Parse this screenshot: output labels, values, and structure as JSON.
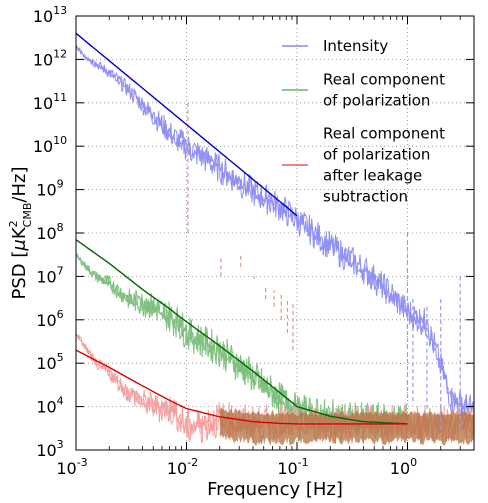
{
  "chart_data": {
    "type": "line",
    "xscale": "log",
    "yscale": "log",
    "xlabel": "Frequency [Hz]",
    "ylabel": "PSD [μK²_CMB/Hz]",
    "ylabel_parts": {
      "prefix": "PSD [",
      "mu": "μ",
      "k": "K",
      "sup": "2",
      "sub": "CMB",
      "suffix": "/Hz]"
    },
    "xlim": [
      0.001,
      4.0
    ],
    "ylim": [
      1000,
      10000000000000
    ],
    "grid": true,
    "legend_position": "upper right",
    "x_ticks": [
      {
        "base": "10",
        "exp": "-3",
        "value": 0.001
      },
      {
        "base": "10",
        "exp": "-2",
        "value": 0.01
      },
      {
        "base": "10",
        "exp": "-1",
        "value": 0.1
      },
      {
        "base": "10",
        "exp": "0",
        "value": 1
      }
    ],
    "y_ticks": [
      {
        "base": "10",
        "exp": "3",
        "value": 1000.0
      },
      {
        "base": "10",
        "exp": "4",
        "value": 10000.0
      },
      {
        "base": "10",
        "exp": "5",
        "value": 100000.0
      },
      {
        "base": "10",
        "exp": "6",
        "value": 1000000.0
      },
      {
        "base": "10",
        "exp": "7",
        "value": 10000000.0
      },
      {
        "base": "10",
        "exp": "8",
        "value": 100000000.0
      },
      {
        "base": "10",
        "exp": "9",
        "value": 1000000000.0
      },
      {
        "base": "10",
        "exp": "10",
        "value": 10000000000.0
      },
      {
        "base": "10",
        "exp": "11",
        "value": 100000000000.0
      },
      {
        "base": "10",
        "exp": "12",
        "value": 1000000000000.0
      },
      {
        "base": "10",
        "exp": "13",
        "value": 10000000000000.0
      }
    ],
    "series": [
      {
        "name": "Intensity",
        "legend_lines": [
          "Intensity"
        ],
        "color": "#0000cc",
        "noise_color": "#8f8ff5",
        "fit": {
          "x": [
            0.001,
            0.1
          ],
          "y": [
            4000000000000.0,
            250000000.0
          ]
        },
        "noise_x": [
          0.001,
          0.0012,
          0.0015,
          0.002,
          0.003,
          0.005,
          0.008,
          0.01,
          0.02,
          0.04,
          0.07,
          0.1,
          0.2,
          0.4,
          0.7,
          1.0,
          1.5,
          2.5,
          4.0
        ],
        "noise_y": [
          2000000000000.0,
          1200000000000.0,
          800000000000.0,
          500000000000.0,
          200000000000.0,
          50000000000.0,
          15000000000.0,
          10000000000.0,
          3000000000.0,
          900000000.0,
          400000000.0,
          200000000.0,
          50000000.0,
          15000000.0,
          4000000.0,
          1500000.0,
          800000.0,
          15000.0,
          8000.0
        ]
      },
      {
        "name": "Real component of polarization",
        "legend_lines": [
          "Real component",
          "of polarization"
        ],
        "color": "#006600",
        "noise_color": "#7fbf7f",
        "fit": {
          "x": [
            0.001,
            0.002,
            0.004,
            0.007,
            0.01,
            0.02,
            0.04,
            0.07,
            0.1,
            0.2,
            0.4,
            1.0
          ],
          "y": [
            70000000.0,
            20000000.0,
            5000000.0,
            1800000.0,
            900000.0,
            250000.0,
            65000.0,
            21000.0,
            10000.0,
            6000.0,
            4500.0,
            4000.0
          ]
        },
        "noise_x": [
          0.001,
          0.0015,
          0.002,
          0.003,
          0.005,
          0.008,
          0.01,
          0.02,
          0.04,
          0.07,
          0.1,
          0.2,
          0.4,
          1.0
        ],
        "noise_y": [
          30000000.0,
          10000000.0,
          7000000.0,
          3000000.0,
          2000000.0,
          1000000.0,
          500000.0,
          200000.0,
          50000.0,
          15000.0,
          8000.0,
          6000.0,
          5000.0,
          5000.0
        ]
      },
      {
        "name": "Real component of polarization after leakage subtraction",
        "legend_lines": [
          "Real component",
          "of polarization",
          "after leakage",
          "subtraction"
        ],
        "color": "#dd0000",
        "noise_color": "#f5a0a0",
        "fill_color": "#b07040",
        "fit": {
          "x": [
            0.001,
            0.002,
            0.004,
            0.007,
            0.01,
            0.02,
            0.04,
            0.07,
            0.1,
            0.2,
            0.5,
            1.0
          ],
          "y": [
            200000.0,
            80000.0,
            30000.0,
            14000.0,
            9000.0,
            5800.0,
            4500.0,
            4100.0,
            4000.0,
            4000.0,
            4000.0,
            4000.0
          ]
        },
        "noise_x": [
          0.001,
          0.0015,
          0.002,
          0.003,
          0.005,
          0.008,
          0.01,
          0.02,
          0.04,
          0.07,
          0.1,
          0.2,
          0.4,
          1.0,
          2.0,
          4.0
        ],
        "noise_y": [
          500000.0,
          100000.0,
          60000.0,
          20000.0,
          10000.0,
          8000.0,
          3000.0,
          5000.0,
          4000.0,
          4000.0,
          4000.0,
          4000.0,
          4000.0,
          4000.0,
          4000.0,
          4000.0
        ]
      }
    ],
    "spikes": [
      {
        "x": 0.0103,
        "y": 100000000000.0
      },
      {
        "x": 0.0205,
        "y": 10000000.0
      },
      {
        "x": 0.031,
        "y": 30000000.0
      },
      {
        "x": 0.041,
        "y": 10000000.0
      },
      {
        "x": 0.052,
        "y": 3000000.0
      },
      {
        "x": 0.062,
        "y": 2000000.0
      },
      {
        "x": 0.072,
        "y": 1000000.0
      },
      {
        "x": 0.082,
        "y": 500000.0
      },
      {
        "x": 0.092,
        "y": 200000.0
      },
      {
        "x": 1.0,
        "y": 100000000.0
      },
      {
        "x": 1.12,
        "y": 3000000.0
      },
      {
        "x": 1.5,
        "y": 2000000.0
      },
      {
        "x": 2.0,
        "y": 3000000.0
      },
      {
        "x": 3.0,
        "y": 10000000.0
      }
    ]
  }
}
